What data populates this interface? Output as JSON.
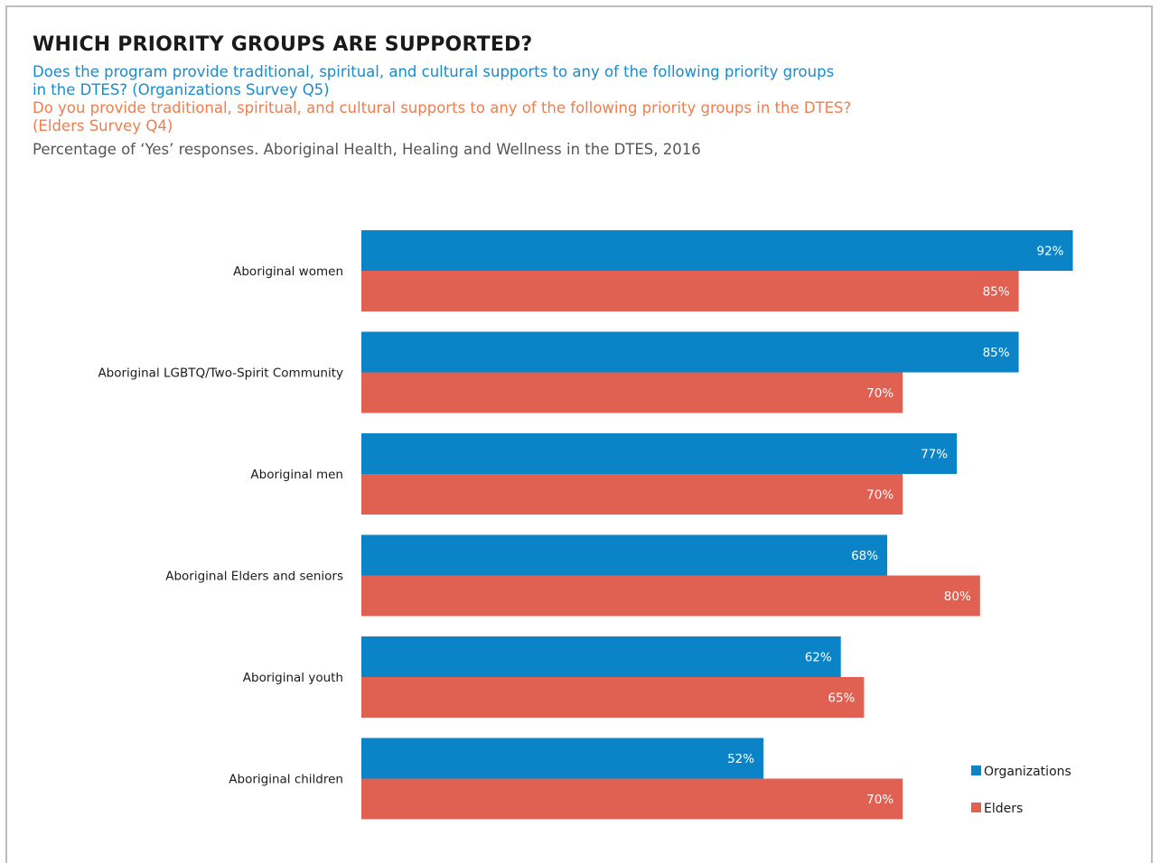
{
  "header": {
    "title": "WHICH PRIORITY GROUPS ARE SUPPORTED?",
    "question_org": "Does the program provide traditional, spiritual, and cultural supports to any of the following priority groups in the DTES? (Organizations Survey Q5)",
    "question_org_line1": "Does the program provide traditional, spiritual, and cultural supports to any of the following priority groups",
    "question_org_line2": "in the DTES? (Organizations Survey Q5)",
    "question_elders_line1": "Do you provide traditional, spiritual, and cultural supports to any of the following priority groups in the DTES?",
    "question_elders_line2": "(Elders Survey Q4)",
    "note": "Percentage of ‘Yes’ responses. Aboriginal Health, Healing and Wellness in the DTES, 2016"
  },
  "colors": {
    "organizations": "#0a84c6",
    "elders": "#e06152",
    "question_org": "#1a8bcc",
    "question_elders": "#ee7e4f"
  },
  "chart_data": {
    "type": "bar",
    "orientation": "horizontal",
    "categories": [
      "Aboriginal women",
      "Aboriginal LGBTQ/Two-Spirit Community",
      "Aboriginal men",
      "Aboriginal Elders and seniors",
      "Aboriginal youth",
      "Aboriginal children"
    ],
    "series": [
      {
        "name": "Organizations",
        "values": [
          92,
          85,
          77,
          68,
          62,
          52
        ],
        "labels": [
          "92%",
          "85%",
          "77%",
          "68%",
          "62%",
          "52%"
        ]
      },
      {
        "name": "Elders",
        "values": [
          85,
          70,
          70,
          80,
          65,
          70
        ],
        "labels": [
          "85%",
          "70%",
          "70%",
          "80%",
          "65%",
          "70%"
        ]
      }
    ],
    "xlim": [
      0,
      100
    ],
    "grid": false,
    "legend": "bottom-right"
  }
}
